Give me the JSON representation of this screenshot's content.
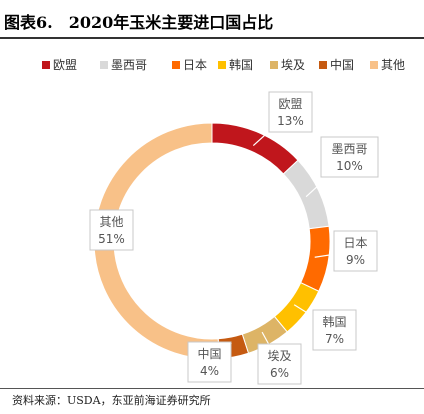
{
  "figure": {
    "title": "图表6.　2020年玉米主要进口国占比",
    "source": "资料来源：USDA，东亚前海证券研究所"
  },
  "chart_data": {
    "type": "pie",
    "variant": "donut",
    "title": "",
    "legend_position": "top",
    "categories": [
      "欧盟",
      "墨西哥",
      "日本",
      "韩国",
      "埃及",
      "中国",
      "其他"
    ],
    "values": [
      13,
      10,
      9,
      7,
      6,
      4,
      51
    ],
    "data_labels": [
      "13%",
      "10%",
      "9%",
      "7%",
      "6%",
      "4%",
      "51%"
    ],
    "colors": [
      "#C0161C",
      "#D9D9D9",
      "#FF6A00",
      "#FFC000",
      "#DDB466",
      "#C55A11",
      "#F8C188"
    ]
  }
}
